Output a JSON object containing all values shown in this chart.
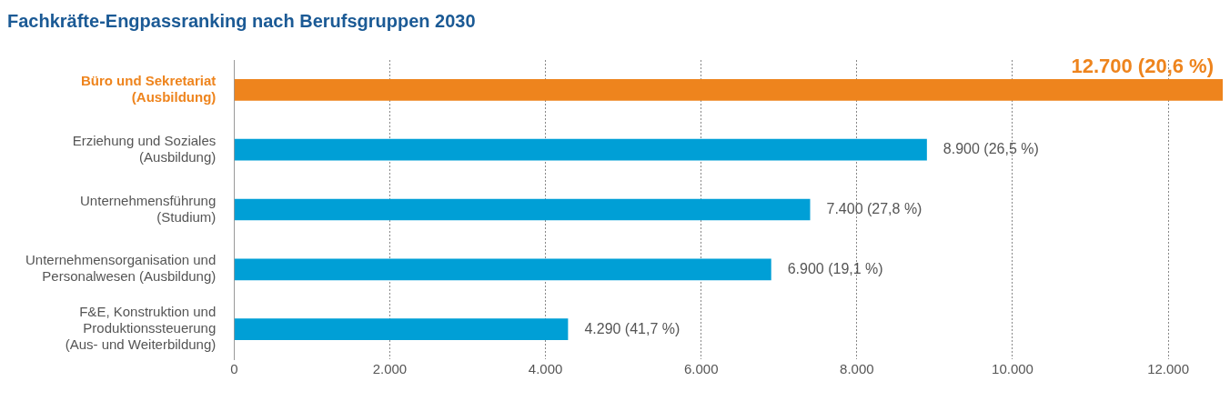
{
  "chart_data": {
    "type": "bar",
    "orientation": "horizontal",
    "title": "Fachkräfte-Engpassranking nach Berufsgruppen 2030",
    "categories": [
      "Büro und Sekretariat\n(Ausbildung)",
      "Erziehung und Soziales\n(Ausbildung)",
      "Unternehmensführung\n(Studium)",
      "Unternehmensorganisation und\nPersonalwesen (Ausbildung)",
      "F&E, Konstruktion und\nProduktionssteuerung\n(Aus- und Weiterbildung)"
    ],
    "values": [
      12700,
      8900,
      7400,
      6900,
      4290
    ],
    "colors": [
      "#ee841d",
      "#009fd6",
      "#009fd6",
      "#009fd6",
      "#009fd6"
    ],
    "value_labels": [
      "12.700 (20,6 %)",
      "8.900 (26,5 %)",
      "7.400 (27,8 %)",
      "6.900 (19,1 %)",
      "4.290 (41,7 %)"
    ],
    "xlim": [
      0,
      12700
    ],
    "xticks": [
      {
        "value": 0,
        "label": "0"
      },
      {
        "value": 2000,
        "label": "2.000"
      },
      {
        "value": 4000,
        "label": "4.000"
      },
      {
        "value": 6000,
        "label": "6.000"
      },
      {
        "value": 8000,
        "label": "8.000"
      },
      {
        "value": 10000,
        "label": "10.000"
      },
      {
        "value": 12000,
        "label": "12.000"
      }
    ],
    "grid": "x",
    "legend": false
  }
}
